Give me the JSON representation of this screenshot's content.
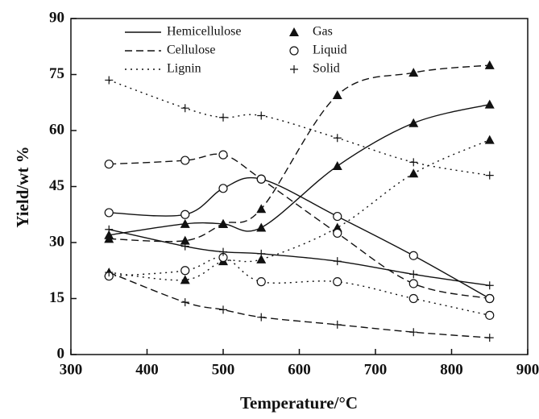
{
  "chart_data": {
    "type": "scatter-fit",
    "x_label": "Temperature/°C",
    "y_label": "Yield/wt %",
    "xlim": [
      300,
      900
    ],
    "xticks": [
      300,
      400,
      500,
      600,
      700,
      800,
      900
    ],
    "ylim": [
      0,
      90
    ],
    "yticks": [
      0,
      15,
      30,
      45,
      60,
      75,
      90
    ],
    "color": "#111111",
    "line_styles": [
      {
        "name": "Hemicellulose",
        "dash": "solid"
      },
      {
        "name": "Cellulose",
        "dash": "dashed"
      },
      {
        "name": "Lignin",
        "dash": "dotted"
      }
    ],
    "markers": [
      {
        "name": "Gas",
        "shape": "triangle"
      },
      {
        "name": "Liquid",
        "shape": "circle"
      },
      {
        "name": "Solid",
        "shape": "plus"
      }
    ],
    "x": [
      350,
      450,
      500,
      550,
      650,
      750,
      850
    ],
    "series": [
      {
        "line": 0,
        "marker": 0,
        "values": [
          32,
          35,
          35,
          34,
          50.5,
          62,
          67
        ]
      },
      {
        "line": 1,
        "marker": 0,
        "values": [
          31,
          30.5,
          35,
          39,
          69.5,
          75.5,
          77.5
        ]
      },
      {
        "line": 2,
        "marker": 0,
        "values": [
          22,
          20,
          25,
          25.5,
          34,
          48.5,
          57.5
        ]
      },
      {
        "line": 0,
        "marker": 1,
        "values": [
          38,
          37.5,
          44.5,
          47,
          37,
          26.5,
          15
        ]
      },
      {
        "line": 1,
        "marker": 1,
        "values": [
          51,
          52,
          53.5,
          47,
          32.5,
          19,
          15
        ]
      },
      {
        "line": 2,
        "marker": 1,
        "values": [
          21,
          22.5,
          26,
          19.5,
          19.5,
          15,
          10.5
        ]
      },
      {
        "line": 0,
        "marker": 2,
        "values": [
          33.5,
          29,
          27.5,
          27,
          25,
          21.5,
          18.5
        ]
      },
      {
        "line": 1,
        "marker": 2,
        "values": [
          22,
          14,
          12,
          10,
          8,
          6,
          4.5
        ]
      },
      {
        "line": 2,
        "marker": 2,
        "values": [
          73.5,
          66,
          63.5,
          64,
          58,
          51.5,
          48
        ]
      }
    ]
  }
}
